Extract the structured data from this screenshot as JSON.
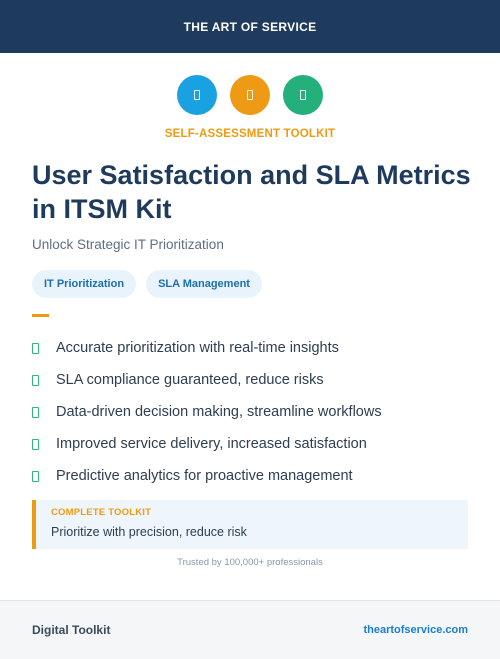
{
  "header": {
    "brand": "THE ART OF SERVICE"
  },
  "icons": [
    {
      "name": "icon-1",
      "color": "#1aa1e2"
    },
    {
      "name": "icon-2",
      "color": "#ef9a14"
    },
    {
      "name": "icon-3",
      "color": "#23b07a"
    }
  ],
  "kicker": "SELF-ASSESSMENT TOOLKIT",
  "title": "User Satisfaction and SLA Metrics in ITSM Kit",
  "subtitle": "Unlock Strategic IT Prioritization",
  "tags": [
    "IT Prioritization",
    "SLA Management"
  ],
  "features": [
    "Accurate prioritization with real-time insights",
    "SLA compliance guaranteed, reduce risks",
    "Data-driven decision making, streamline workflows",
    "Improved service delivery, increased satisfaction",
    "Predictive analytics for proactive management"
  ],
  "callout": {
    "label": "COMPLETE TOOLKIT",
    "text": "Prioritize with precision, reduce risk"
  },
  "trusted": "Trusted by 100,000+ professionals",
  "footer": {
    "left": "Digital Toolkit",
    "right": "theartofservice.com"
  },
  "colors": {
    "navy": "#1e3a5c",
    "orange": "#ee9b12",
    "green": "#2db87a",
    "link": "#1a7fd1"
  }
}
